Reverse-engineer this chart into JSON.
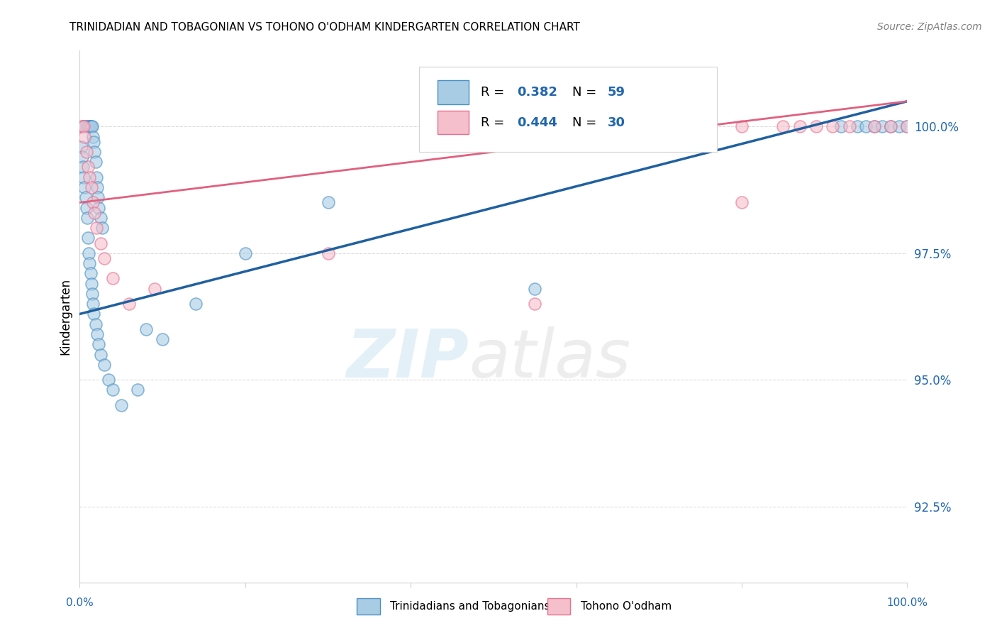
{
  "title": "TRINIDADIAN AND TOBAGONIAN VS TOHONO O'ODHAM KINDERGARTEN CORRELATION CHART",
  "source": "Source: ZipAtlas.com",
  "ylabel": "Kindergarten",
  "ylabel_ticks": [
    92.5,
    95.0,
    97.5,
    100.0
  ],
  "ylabel_tick_labels": [
    "92.5%",
    "95.0%",
    "97.5%",
    "100.0%"
  ],
  "xlim": [
    0,
    100
  ],
  "ylim": [
    91.0,
    101.5
  ],
  "legend_blue_r": "0.382",
  "legend_blue_n": "59",
  "legend_pink_r": "0.444",
  "legend_pink_n": "30",
  "legend_label_blue": "Trinidadians and Tobagonians",
  "legend_label_pink": "Tohono O'odham",
  "blue_color": "#a8cce4",
  "pink_color": "#f5bfcc",
  "blue_edge_color": "#4a90c4",
  "pink_edge_color": "#e87090",
  "blue_line_color": "#2060a0",
  "pink_line_color": "#e06080",
  "blue_x": [
    0.3,
    0.5,
    0.6,
    0.8,
    1.0,
    1.1,
    1.2,
    1.3,
    1.4,
    1.5,
    1.6,
    1.7,
    1.8,
    1.9,
    2.0,
    2.1,
    2.2,
    2.3,
    2.5,
    2.7,
    0.2,
    0.3,
    0.4,
    0.5,
    0.6,
    0.7,
    0.8,
    0.9,
    1.0,
    1.1,
    1.2,
    1.3,
    1.4,
    1.5,
    1.6,
    1.7,
    1.9,
    2.1,
    2.3,
    2.5,
    3.0,
    3.5,
    4.0,
    5.0,
    7.0,
    8.0,
    10.0,
    14.0,
    92.0,
    94.0,
    95.0,
    96.0,
    97.0,
    98.0,
    99.0,
    100.0,
    20.0,
    30.0,
    55.0
  ],
  "blue_y": [
    100.0,
    100.0,
    100.0,
    100.0,
    100.0,
    100.0,
    100.0,
    100.0,
    100.0,
    100.0,
    99.8,
    99.7,
    99.5,
    99.3,
    99.0,
    98.8,
    98.6,
    98.4,
    98.2,
    98.0,
    99.6,
    99.4,
    99.2,
    99.0,
    98.8,
    98.6,
    98.4,
    98.2,
    97.8,
    97.5,
    97.3,
    97.1,
    96.9,
    96.7,
    96.5,
    96.3,
    96.1,
    95.9,
    95.7,
    95.5,
    95.3,
    95.0,
    94.8,
    94.5,
    94.8,
    96.0,
    95.8,
    96.5,
    100.0,
    100.0,
    100.0,
    100.0,
    100.0,
    100.0,
    100.0,
    100.0,
    97.5,
    98.5,
    96.8
  ],
  "pink_x": [
    0.3,
    0.5,
    0.6,
    0.8,
    1.0,
    1.2,
    1.4,
    1.6,
    1.8,
    2.0,
    2.5,
    3.0,
    4.0,
    6.0,
    9.0,
    60.0,
    70.0,
    75.0,
    80.0,
    85.0,
    87.0,
    89.0,
    91.0,
    93.0,
    96.0,
    98.0,
    100.0,
    30.0,
    55.0,
    80.0
  ],
  "pink_y": [
    100.0,
    100.0,
    99.8,
    99.5,
    99.2,
    99.0,
    98.8,
    98.5,
    98.3,
    98.0,
    97.7,
    97.4,
    97.0,
    96.5,
    96.8,
    100.0,
    100.0,
    100.0,
    100.0,
    100.0,
    100.0,
    100.0,
    100.0,
    100.0,
    100.0,
    100.0,
    100.0,
    97.5,
    96.5,
    98.5
  ],
  "blue_line_x": [
    0,
    100
  ],
  "blue_line_y": [
    96.3,
    100.5
  ],
  "pink_line_x": [
    0,
    100
  ],
  "pink_line_y": [
    98.5,
    100.5
  ]
}
